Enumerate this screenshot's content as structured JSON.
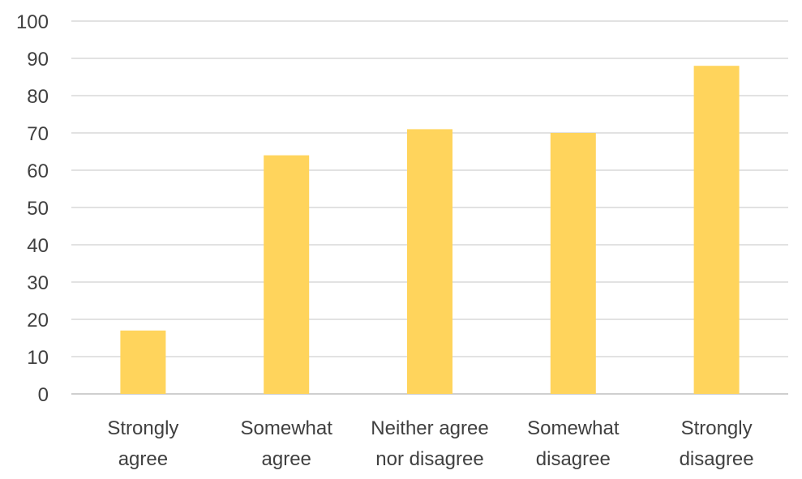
{
  "chart_data": {
    "type": "bar",
    "categories": [
      [
        "Strongly",
        "agree"
      ],
      [
        "Somewhat",
        "agree"
      ],
      [
        "Neither agree",
        "nor disagree"
      ],
      [
        "Somewhat",
        "disagree"
      ],
      [
        "Strongly",
        "disagree"
      ]
    ],
    "values": [
      17,
      64,
      71,
      70,
      88
    ],
    "title": "",
    "xlabel": "",
    "ylabel": "",
    "ylim": [
      0,
      100
    ],
    "yticks": [
      "0",
      "10",
      "20",
      "30",
      "40",
      "50",
      "60",
      "70",
      "80",
      "90",
      "100"
    ],
    "grid": true,
    "legend": "none",
    "colors": {
      "bar": "#ffd45c",
      "grid": "#d9d9d9",
      "text": "#404040"
    }
  }
}
